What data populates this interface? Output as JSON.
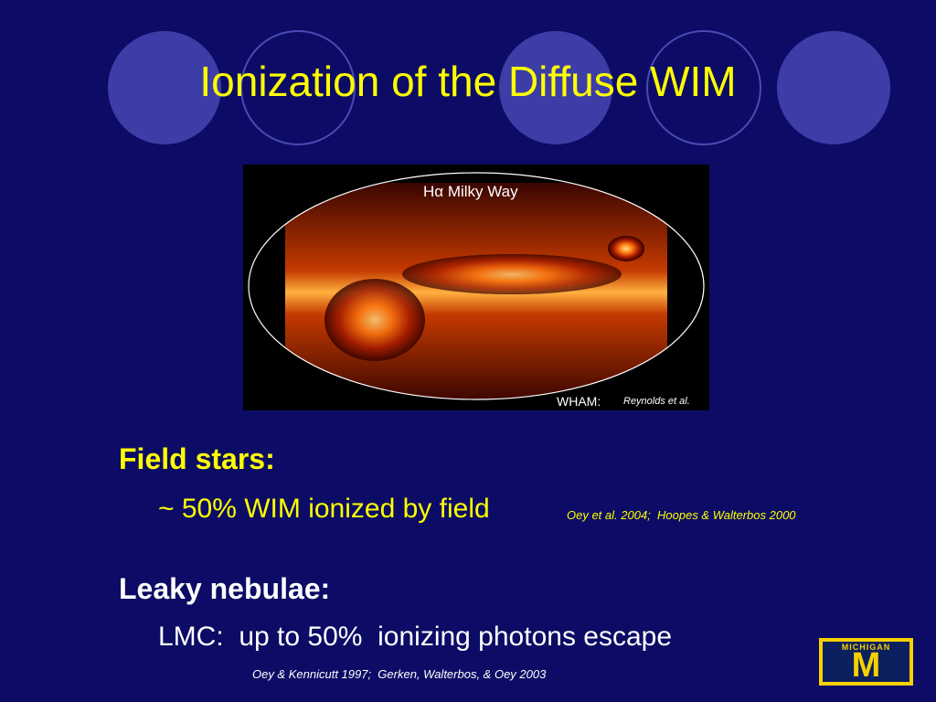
{
  "title": "Ionization of the Diffuse WIM",
  "figure": {
    "label": "Hα Milky Way",
    "credit_prefix": "WHAM:",
    "credit": "Reynolds et al."
  },
  "sections": [
    {
      "heading": "Field stars:",
      "items": [
        {
          "text": "~ 50% WIM ionized by field",
          "reference": "Oey et al. 2004;  Hoopes & Walterbos 2000"
        }
      ]
    },
    {
      "heading": "Leaky nebulae:",
      "items": [
        {
          "text": "LMC:  up to 50%  ionizing photons escape",
          "reference": "Oey & Kennicutt 1997;  Gerken, Walterbos, & Oey 2003"
        }
      ]
    }
  ],
  "logo": {
    "wordmark": "MICHIGAN",
    "letter": "M"
  }
}
